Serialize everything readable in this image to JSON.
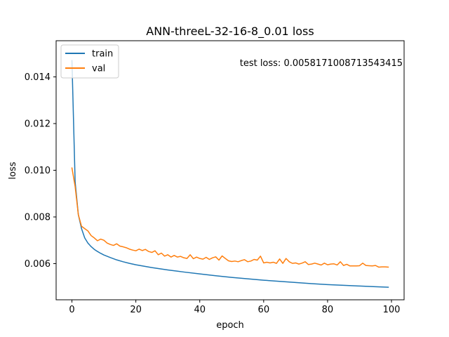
{
  "chart_data": {
    "type": "line",
    "title": "ANN-threeL-32-16-8_0.01 loss",
    "xlabel": "epoch",
    "ylabel": "loss",
    "xlim": [
      -4.95,
      103.95
    ],
    "ylim": [
      0.00445,
      0.01555
    ],
    "xticks": [
      0,
      20,
      40,
      60,
      80,
      100
    ],
    "yticks": [
      0.006,
      0.008,
      0.01,
      0.012,
      0.014
    ],
    "ytick_labels": [
      "0.006",
      "0.008",
      "0.010",
      "0.012",
      "0.014"
    ],
    "grid": false,
    "legend_position": "upper-left",
    "annotation": "test loss: 0.0058171008713543415",
    "series": [
      {
        "name": "train",
        "color": "#1f77b4",
        "x": [
          0,
          1,
          2,
          3,
          4,
          5,
          6,
          7,
          8,
          9,
          10,
          12,
          14,
          16,
          18,
          20,
          25,
          30,
          35,
          40,
          45,
          50,
          55,
          60,
          65,
          70,
          75,
          80,
          85,
          90,
          95,
          99
        ],
        "y": [
          0.0147,
          0.0095,
          0.0081,
          0.0075,
          0.0071,
          0.00688,
          0.00673,
          0.00661,
          0.00652,
          0.00644,
          0.00637,
          0.00626,
          0.00616,
          0.00608,
          0.00601,
          0.00595,
          0.00583,
          0.00573,
          0.00564,
          0.00556,
          0.00548,
          0.00541,
          0.00535,
          0.00529,
          0.00524,
          0.00519,
          0.00514,
          0.0051,
          0.00507,
          0.00504,
          0.00501,
          0.00499
        ]
      },
      {
        "name": "val",
        "color": "#ff7f0e",
        "x": [
          0,
          1,
          2,
          3,
          4,
          5,
          6,
          7,
          8,
          9,
          10,
          11,
          12,
          13,
          14,
          15,
          16,
          17,
          18,
          19,
          20,
          21,
          22,
          23,
          24,
          25,
          26,
          27,
          28,
          29,
          30,
          31,
          32,
          33,
          34,
          35,
          36,
          37,
          38,
          39,
          40,
          41,
          42,
          43,
          44,
          45,
          46,
          47,
          48,
          49,
          50,
          51,
          52,
          53,
          54,
          55,
          56,
          57,
          58,
          59,
          60,
          61,
          62,
          63,
          64,
          65,
          66,
          67,
          68,
          69,
          70,
          71,
          72,
          73,
          74,
          75,
          76,
          77,
          78,
          79,
          80,
          81,
          82,
          83,
          84,
          85,
          86,
          87,
          88,
          89,
          90,
          91,
          92,
          93,
          94,
          95,
          96,
          97,
          98,
          99
        ],
        "y": [
          0.0101,
          0.0093,
          0.0081,
          0.0076,
          0.0075,
          0.0074,
          0.0072,
          0.0071,
          0.00698,
          0.00705,
          0.007,
          0.00688,
          0.00682,
          0.00678,
          0.00685,
          0.00675,
          0.00672,
          0.00668,
          0.00662,
          0.00658,
          0.00655,
          0.00662,
          0.00656,
          0.00661,
          0.00652,
          0.00648,
          0.00655,
          0.00638,
          0.00645,
          0.00632,
          0.00638,
          0.00628,
          0.00635,
          0.00628,
          0.00631,
          0.00625,
          0.00622,
          0.00638,
          0.00621,
          0.00628,
          0.00622,
          0.00619,
          0.00627,
          0.00618,
          0.00625,
          0.00629,
          0.00615,
          0.00633,
          0.00622,
          0.00612,
          0.00609,
          0.00611,
          0.00608,
          0.00613,
          0.00617,
          0.00608,
          0.00611,
          0.00618,
          0.00615,
          0.00632,
          0.00603,
          0.00606,
          0.00603,
          0.00606,
          0.00601,
          0.0062,
          0.00601,
          0.00622,
          0.00608,
          0.00601,
          0.00603,
          0.00598,
          0.00602,
          0.00608,
          0.00596,
          0.00598,
          0.00602,
          0.00598,
          0.00594,
          0.00602,
          0.00595,
          0.00598,
          0.00599,
          0.00594,
          0.00608,
          0.00592,
          0.00597,
          0.0059,
          0.0059,
          0.0059,
          0.00591,
          0.00602,
          0.00592,
          0.00591,
          0.0059,
          0.00592,
          0.00585,
          0.00586,
          0.00586,
          0.00585
        ]
      }
    ]
  }
}
